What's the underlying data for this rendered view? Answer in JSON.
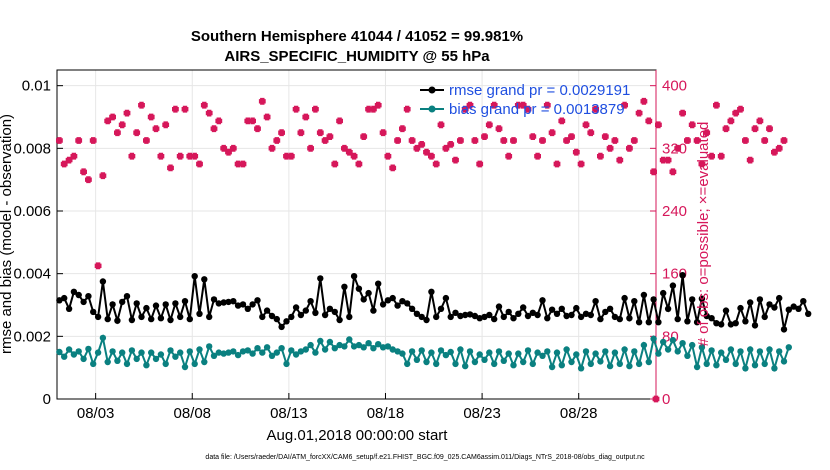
{
  "chart_data": {
    "type": "line",
    "title": "Southern Hemisphere 41044 / 41052 = 99.981%",
    "subtitle": "AIRS_SPECIFIC_HUMIDITY @ 55 hPa",
    "xlabel": "Aug.01,2018 00:00:00 start",
    "ylabel_left": "rmse and bias (model - observation)",
    "ylabel_right": "# of obs: o=possible; ×=evaluated",
    "footer": "data file: /Users/raeder/DAI/ATM_forcXX/CAM6_setup/f.e21.FHIST_BGC.f09_025.CAM6assim.011/Diags_NTrS_2018-08/obs_diag_output.nc",
    "x_ticks": [
      "08/03",
      "08/08",
      "08/13",
      "08/18",
      "08/23",
      "08/28"
    ],
    "x_tick_days": [
      3,
      8,
      13,
      18,
      23,
      28
    ],
    "xlim_days": [
      1,
      32
    ],
    "ylim_left": [
      0,
      0.0105
    ],
    "yticks_left": [
      "0",
      "0.002",
      "0.004",
      "0.006",
      "0.008",
      "0.01"
    ],
    "ylim_right": [
      0,
      420
    ],
    "yticks_right": [
      "0",
      "80",
      "160",
      "240",
      "320",
      "400"
    ],
    "grid": true,
    "legend_position": "top-right",
    "colors": {
      "rmse": "#000000",
      "bias": "#0a8080",
      "obs": "#d6175a",
      "legend_text": "#1f4fe0"
    },
    "series": [
      {
        "name": "rmse grand pr = 0.0029191",
        "axis": "left",
        "step_days": 0.25,
        "start_day": 1.125,
        "values": [
          0.00315,
          0.00322,
          0.00288,
          0.00342,
          0.00332,
          0.0031,
          0.00328,
          0.00278,
          0.00262,
          0.00375,
          0.00255,
          0.00302,
          0.0025,
          0.0031,
          0.00328,
          0.00252,
          0.00305,
          0.00262,
          0.0029,
          0.00255,
          0.00298,
          0.00258,
          0.00302,
          0.00252,
          0.00305,
          0.00262,
          0.00312,
          0.00255,
          0.00392,
          0.00272,
          0.00382,
          0.00262,
          0.00318,
          0.00305,
          0.00308,
          0.0031,
          0.00312,
          0.00298,
          0.00302,
          0.00288,
          0.00302,
          0.00315,
          0.00262,
          0.00282,
          0.00265,
          0.00255,
          0.0023,
          0.00248,
          0.00262,
          0.00292,
          0.00268,
          0.00282,
          0.00312,
          0.00275,
          0.00385,
          0.00268,
          0.00288,
          0.00278,
          0.00252,
          0.00358,
          0.00262,
          0.00392,
          0.00352,
          0.00318,
          0.00338,
          0.00282,
          0.00368,
          0.00302,
          0.00315,
          0.00322,
          0.00298,
          0.00312,
          0.00305,
          0.00288,
          0.00272,
          0.00262,
          0.00252,
          0.00342,
          0.00262,
          0.00288,
          0.00322,
          0.00262,
          0.00275,
          0.00265,
          0.00268,
          0.0027,
          0.00265,
          0.00258,
          0.00262,
          0.00268,
          0.00255,
          0.00295,
          0.00262,
          0.00278,
          0.00258,
          0.00272,
          0.00292,
          0.00265,
          0.00275,
          0.00268,
          0.00315,
          0.00258,
          0.00285,
          0.00272,
          0.00288,
          0.00265,
          0.00268,
          0.0029,
          0.00262,
          0.00272,
          0.00268,
          0.00312,
          0.00255,
          0.00278,
          0.00288,
          0.00262,
          0.00255,
          0.00322,
          0.00258,
          0.00312,
          0.00245,
          0.00332,
          0.00245,
          0.00318,
          0.00245,
          0.00338,
          0.00288,
          0.00362,
          0.00255,
          0.00395,
          0.00248,
          0.00318,
          0.00245,
          0.0032,
          0.00265,
          0.00258,
          0.00242,
          0.00238,
          0.00282,
          0.00238,
          0.00242,
          0.0029,
          0.00248,
          0.00308,
          0.00235,
          0.00318,
          0.00262,
          0.00302,
          0.00292,
          0.00322,
          0.00222,
          0.00285,
          0.00295,
          0.00288,
          0.00312,
          0.00272
        ]
      },
      {
        "name": "bias grand pr = 0.0013879",
        "axis": "left",
        "step_days": 0.25,
        "start_day": 1.125,
        "values": [
          0.0015,
          0.00135,
          0.00158,
          0.00142,
          0.00152,
          0.00128,
          0.0016,
          0.00112,
          0.00148,
          0.00195,
          0.00118,
          0.00152,
          0.00122,
          0.00148,
          0.00112,
          0.00155,
          0.00128,
          0.00148,
          0.00108,
          0.00148,
          0.00128,
          0.00142,
          0.00112,
          0.00155,
          0.00135,
          0.00148,
          0.00102,
          0.00152,
          0.00112,
          0.00158,
          0.00118,
          0.00168,
          0.00138,
          0.00148,
          0.00145,
          0.00148,
          0.00152,
          0.0014,
          0.00152,
          0.00155,
          0.00145,
          0.00162,
          0.00148,
          0.00165,
          0.00138,
          0.00148,
          0.00162,
          0.00112,
          0.00155,
          0.00142,
          0.00152,
          0.00158,
          0.00172,
          0.00148,
          0.00185,
          0.00158,
          0.00182,
          0.00162,
          0.00172,
          0.00168,
          0.0019,
          0.00168,
          0.00172,
          0.00165,
          0.00178,
          0.00162,
          0.00175,
          0.00165,
          0.00168,
          0.00158,
          0.00152,
          0.00145,
          0.00112,
          0.00152,
          0.00125,
          0.00155,
          0.00118,
          0.00148,
          0.00112,
          0.00155,
          0.0014,
          0.0015,
          0.00112,
          0.00158,
          0.00105,
          0.00152,
          0.00118,
          0.00142,
          0.00125,
          0.00148,
          0.00112,
          0.00152,
          0.00122,
          0.00145,
          0.00108,
          0.00145,
          0.00118,
          0.00155,
          0.00112,
          0.00148,
          0.00138,
          0.00152,
          0.00102,
          0.00148,
          0.00108,
          0.00158,
          0.00118,
          0.00142,
          0.00098,
          0.00152,
          0.00112,
          0.00145,
          0.0012,
          0.00152,
          0.00105,
          0.00148,
          0.00112,
          0.00158,
          0.00105,
          0.00152,
          0.00112,
          0.00172,
          0.00118,
          0.00192,
          0.00145,
          0.00182,
          0.00158,
          0.00188,
          0.00152,
          0.00178,
          0.00138,
          0.00172,
          0.00102,
          0.00165,
          0.00112,
          0.00155,
          0.00108,
          0.00148,
          0.00125,
          0.00158,
          0.00112,
          0.00152,
          0.00098,
          0.00158,
          0.00108,
          0.00152,
          0.00112,
          0.00158,
          0.00098,
          0.00152,
          0.0012,
          0.00165
        ]
      },
      {
        "name": "obs evaluated",
        "axis": "right",
        "step_days": 0.25,
        "start_day": 1.125,
        "values": [
          330,
          300,
          305,
          310,
          330,
          290,
          280,
          330,
          170,
          285,
          355,
          360,
          340,
          350,
          365,
          310,
          340,
          375,
          330,
          360,
          345,
          310,
          350,
          295,
          370,
          310,
          370,
          310,
          310,
          300,
          375,
          365,
          345,
          355,
          320,
          315,
          320,
          300,
          300,
          355,
          355,
          345,
          380,
          360,
          320,
          330,
          340,
          310,
          310,
          370,
          340,
          360,
          320,
          370,
          340,
          330,
          335,
          300,
          355,
          320,
          315,
          310,
          300,
          335,
          370,
          370,
          375,
          340,
          310,
          295,
          330,
          345,
          370,
          330,
          320,
          325,
          315,
          310,
          300,
          350,
          320,
          325,
          305,
          330,
          370,
          375,
          330,
          300,
          335,
          350,
          375,
          345,
          330,
          310,
          330,
          375,
          375,
          370,
          335,
          310,
          330,
          375,
          340,
          300,
          355,
          330,
          335,
          315,
          300,
          350,
          340,
          370,
          310,
          335,
          320,
          330,
          305,
          375,
          320,
          330,
          365,
          380,
          355,
          290,
          350,
          305,
          305,
          290,
          320,
          365,
          330,
          350,
          330,
          300,
          340,
          310,
          375,
          310,
          345,
          355,
          365,
          370,
          330,
          305,
          345,
          355,
          330,
          345,
          315,
          320,
          330
        ]
      }
    ],
    "extra_points": [
      {
        "series": "obs evaluated",
        "day": 32,
        "value": 0
      }
    ]
  }
}
